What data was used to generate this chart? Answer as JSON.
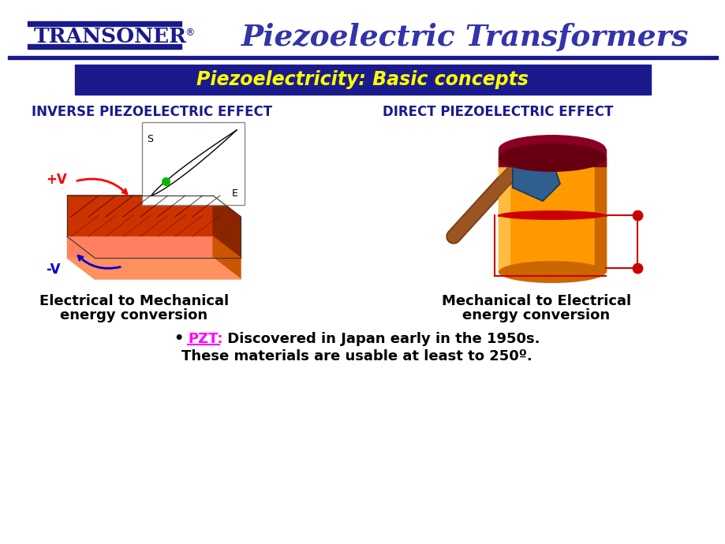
{
  "bg_color": "#ffffff",
  "title_banner_color": "#1a1a8c",
  "title_text": "Piezoelectricity: Basic concepts",
  "title_text_color": "#ffff00",
  "transoner_color": "#1a1a8c",
  "piezo_title_color": "#3333aa",
  "section_left": "INVERSE PIEZOELECTRIC EFFECT",
  "section_right": "DIRECT PIEZOELECTRIC EFFECT",
  "section_color": "#1a1a8c",
  "caption_left_1": "Electrical to Mechanical",
  "caption_left_2": "energy conversion",
  "caption_right_1": "Mechanical to Electrical",
  "caption_right_2": "energy conversion",
  "caption_color": "#000000",
  "pzt_color": "#ff00ff",
  "bottom_text_color": "#000000"
}
